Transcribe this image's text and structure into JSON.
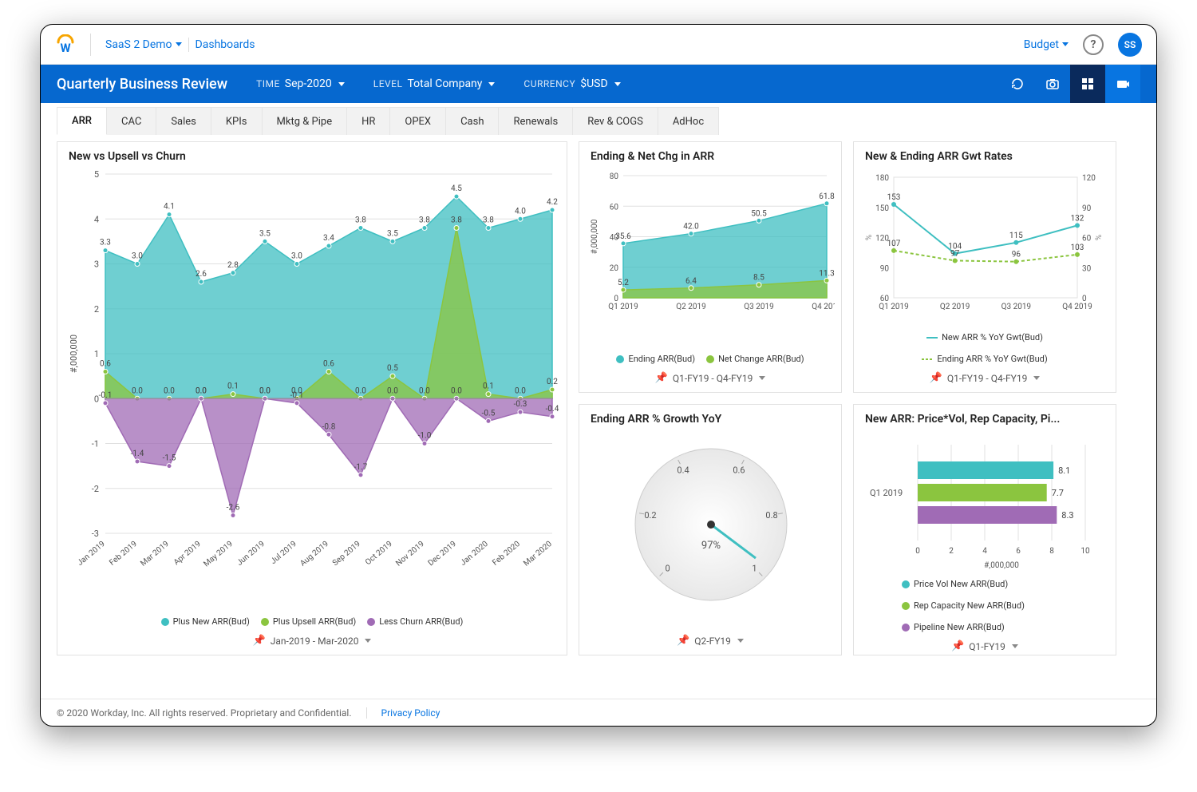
{
  "header": {
    "workspace": "SaaS 2 Demo",
    "section": "Dashboards",
    "budget_label": "Budget",
    "avatar": "SS"
  },
  "subheader": {
    "title": "Quarterly Business Review",
    "time_label": "TIME",
    "time_value": "Sep-2020",
    "level_label": "LEVEL",
    "level_value": "Total Company",
    "currency_label": "CURRENCY",
    "currency_value": "$USD"
  },
  "tabs": [
    "ARR",
    "CAC",
    "Sales",
    "KPIs",
    "Mktg & Pipe",
    "HR",
    "OPEX",
    "Cash",
    "Renewals",
    "Rev & COGS",
    "AdHoc"
  ],
  "active_tab_index": 0,
  "colors": {
    "teal": "#3fbfc1",
    "green": "#8bc53f",
    "purple": "#a06bb5",
    "grid": "#e0e0e0",
    "axis": "#888888",
    "text": "#555555",
    "blue": "#0875e1"
  },
  "chart_big": {
    "title": "New vs Upsell vs Churn",
    "type": "area",
    "ylabel": "#,000,000",
    "ylim": [
      -3,
      5
    ],
    "ytick_step": 1,
    "categories": [
      "Jan 2019",
      "Feb 2019",
      "Mar 2019",
      "Apr 2019",
      "May 2019",
      "Jun 2019",
      "Jul 2019",
      "Aug 2019",
      "Sep 2019",
      "Oct 2019",
      "Nov 2019",
      "Dec 2019",
      "Jan 2020",
      "Feb 2020",
      "Mar 2020"
    ],
    "series": [
      {
        "name": "Plus New ARR(Bud)",
        "color": "#3fbfc1",
        "values": [
          3.3,
          3.0,
          4.1,
          2.6,
          2.8,
          3.5,
          3.0,
          3.4,
          3.8,
          3.5,
          3.8,
          4.5,
          3.8,
          4.0,
          4.2
        ],
        "labels": [
          "3.3",
          "3.0",
          "4.1",
          "2.6",
          "2.8",
          "3.5",
          "3.0",
          "3.4",
          "3.8",
          "3.5",
          "3.8",
          "4.5",
          "3.8",
          "4.0",
          "4.2"
        ]
      },
      {
        "name": "Plus Upsell ARR(Bud)",
        "color": "#8bc53f",
        "values": [
          0.6,
          0.0,
          0.0,
          0.0,
          0.1,
          0.0,
          0.0,
          0.6,
          0.0,
          0.5,
          0.0,
          3.8,
          0.1,
          0.0,
          0.2
        ],
        "labels": [
          "0.6",
          "0.0",
          "0.0",
          "0.0",
          "0.1",
          "0.0",
          "0.0",
          "0.6",
          "0.0",
          "0.5",
          "0.0",
          "3.8",
          "0.1",
          "0.0",
          "0.2"
        ]
      },
      {
        "name": "Less Churn ARR(Bud)",
        "color": "#a06bb5",
        "values": [
          -0.1,
          -1.4,
          -1.5,
          0.0,
          -2.6,
          0.0,
          -0.1,
          -0.8,
          -1.7,
          0.0,
          -1.0,
          0.0,
          -0.5,
          -0.3,
          -0.4
        ],
        "labels": [
          "-0.1",
          "-1.4",
          "-1.5",
          "0.0",
          "-2.6",
          "0.0",
          "-0.1",
          "-0.8",
          "-1.7",
          "0.0",
          "-1.0",
          "0.0",
          "-0.5",
          "-0.3",
          "-0.4"
        ]
      }
    ],
    "footer": "Jan-2019 - Mar-2020"
  },
  "chart_2": {
    "title": "Ending & Net Chg in ARR",
    "type": "area",
    "ylabel": "#,000,000",
    "ylim": [
      0,
      80
    ],
    "ytick_step": 20,
    "categories": [
      "Q1 2019",
      "Q2 2019",
      "Q3 2019",
      "Q4 2019"
    ],
    "series": [
      {
        "name": "Ending ARR(Bud)",
        "color": "#3fbfc1",
        "values": [
          35.6,
          42.0,
          50.5,
          61.8
        ],
        "labels": [
          "35.6",
          "42.0",
          "50.5",
          "61.8"
        ]
      },
      {
        "name": "Net Change ARR(Bud)",
        "color": "#8bc53f",
        "values": [
          5.2,
          6.4,
          8.5,
          11.3
        ],
        "labels": [
          "5.2",
          "6.4",
          "8.5",
          "11.3"
        ]
      }
    ],
    "footer": "Q1-FY19 - Q4-FY19"
  },
  "chart_3": {
    "title": "New & Ending ARR Gwt Rates",
    "type": "line",
    "ylabel_left": "%",
    "ylabel_right": "%",
    "ylim_left": [
      60,
      180
    ],
    "ytick_step_left": 30,
    "ylim_right": [
      0,
      120
    ],
    "ytick_step_right": 30,
    "categories": [
      "Q1 2019",
      "Q2 2019",
      "Q3 2019",
      "Q4 2019"
    ],
    "series": [
      {
        "name": "New ARR % YoY Gwt(Bud)",
        "color": "#3fbfc1",
        "axis": "left",
        "values": [
          153,
          104,
          115,
          132
        ],
        "labels": [
          "153",
          "104",
          "115",
          "132"
        ]
      },
      {
        "name": "Ending ARR % YoY Gwt(Bud)",
        "color": "#8bc53f",
        "axis": "left",
        "values": [
          107,
          97,
          96,
          103
        ],
        "labels": [
          "107",
          "97",
          "96",
          "103"
        ],
        "dash": true
      }
    ],
    "footer": "Q1-FY19 - Q4-FY19"
  },
  "chart_4": {
    "title": "Ending ARR % Growth YoY",
    "type": "gauge",
    "value": 0.97,
    "value_label": "97%",
    "ticks": [
      "0",
      "0.2",
      "0.4",
      "0.6",
      "0.8",
      "1"
    ],
    "footer": "Q2-FY19"
  },
  "chart_5": {
    "title": "New ARR: Price*Vol, Rep Capacity, Pi...",
    "type": "hbar",
    "xlabel": "#,000,000",
    "xlim": [
      0,
      10
    ],
    "xtick_step": 2,
    "group_label": "Q1 2019",
    "series": [
      {
        "name": "Price Vol New ARR(Bud)",
        "color": "#3fbfc1",
        "value": 8.1,
        "label": "8.1"
      },
      {
        "name": "Rep Capacity New ARR(Bud)",
        "color": "#8bc53f",
        "value": 7.7,
        "label": "7.7"
      },
      {
        "name": "Pipeline New ARR(Bud)",
        "color": "#a06bb5",
        "value": 8.3,
        "label": "8.3"
      }
    ],
    "footer": "Q1-FY19"
  },
  "footer": {
    "copyright": "© 2020 Workday, Inc. All rights reserved. Proprietary and Confidential.",
    "privacy": "Privacy Policy"
  }
}
